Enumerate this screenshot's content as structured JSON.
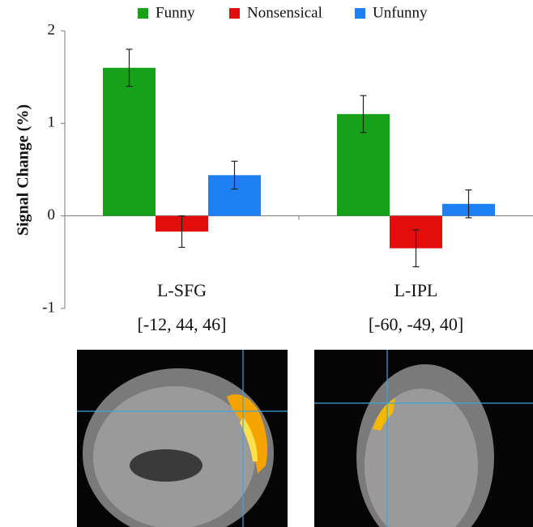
{
  "chart_data": {
    "type": "bar",
    "ylabel": "Signal Change (%)",
    "categories": [
      "L-SFG",
      "L-IPL"
    ],
    "coordinates": [
      "[-12, 44, 46]",
      "[-60, -49, 40]"
    ],
    "series": [
      {
        "name": "Funny",
        "color": "#17a019",
        "values": [
          1.6,
          1.1
        ],
        "errors": [
          0.2,
          0.2
        ]
      },
      {
        "name": "Nonsensical",
        "color": "#e20d0d",
        "values": [
          -0.17,
          -0.35
        ],
        "errors": [
          0.17,
          0.2
        ]
      },
      {
        "name": "Unfunny",
        "color": "#1c80f2",
        "values": [
          0.44,
          0.13
        ],
        "errors": [
          0.15,
          0.15
        ]
      }
    ],
    "ylim": [
      -1,
      2
    ],
    "yticks": [
      -1,
      0,
      1,
      2
    ]
  }
}
